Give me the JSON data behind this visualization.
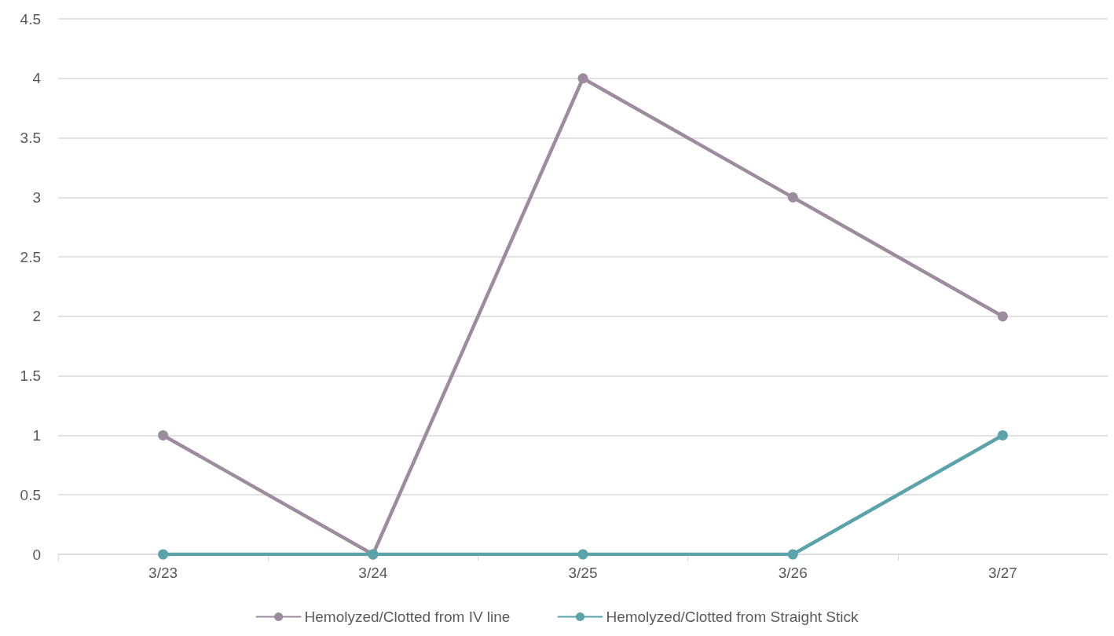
{
  "chart_data": {
    "type": "line",
    "categories": [
      "3/23",
      "3/24",
      "3/25",
      "3/26",
      "3/27"
    ],
    "series": [
      {
        "name": "Hemolyzed/Clotted from IV line",
        "color": "#9c8c9e",
        "values": [
          1,
          0,
          4,
          3,
          2
        ]
      },
      {
        "name": "Hemolyzed/Clotted from Straight Stick",
        "color": "#5ba3ab",
        "values": [
          0,
          0,
          0,
          0,
          1
        ]
      }
    ],
    "ylim": [
      0,
      4.5
    ],
    "yticks": [
      0,
      0.5,
      1,
      1.5,
      2,
      2.5,
      3,
      3.5,
      4,
      4.5
    ],
    "grid": "y",
    "legend": "bottom",
    "marker": "circle",
    "line_style": "solid"
  }
}
